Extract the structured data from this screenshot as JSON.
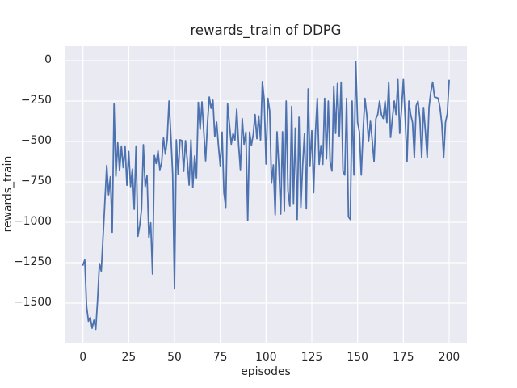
{
  "title": "rewards_train of DDPG",
  "chart_data": {
    "type": "line",
    "title": "rewards_train of DDPG",
    "xlabel": "episodes",
    "ylabel": "rewards_train",
    "x_ticks": [
      0,
      25,
      50,
      75,
      100,
      125,
      150,
      175,
      200
    ],
    "y_ticks": [
      0,
      -250,
      -500,
      -750,
      -1000,
      -1250,
      -1500
    ],
    "xlim": [
      -10,
      209.7
    ],
    "ylim": [
      -1745,
      90
    ],
    "grid": true,
    "legend_position": "none",
    "style": "seaborn-darkgrid",
    "colors": {
      "line": "#4c72b0",
      "axes_background": "#eaeaf2",
      "grid": "#ffffff",
      "figure_background": "#ffffff",
      "text": "#262626"
    },
    "series": [
      {
        "name": "rewards_train",
        "x_start": 0,
        "x_step": 1,
        "values": [
          -1265,
          -1233,
          -1520,
          -1612,
          -1588,
          -1655,
          -1605,
          -1662,
          -1480,
          -1255,
          -1302,
          -1088,
          -868,
          -648,
          -830,
          -718,
          -1062,
          -268,
          -715,
          -508,
          -680,
          -528,
          -662,
          -528,
          -771,
          -562,
          -779,
          -671,
          -920,
          -528,
          -1087,
          -1020,
          -920,
          -520,
          -779,
          -712,
          -1095,
          -1003,
          -1320,
          -587,
          -637,
          -558,
          -675,
          -628,
          -478,
          -578,
          -492,
          -250,
          -460,
          -703,
          -1412,
          -490,
          -705,
          -490,
          -495,
          -685,
          -495,
          -620,
          -770,
          -490,
          -785,
          -590,
          -725,
          -258,
          -425,
          -255,
          -440,
          -620,
          -390,
          -225,
          -295,
          -245,
          -470,
          -380,
          -525,
          -650,
          -442,
          -817,
          -908,
          -267,
          -392,
          -517,
          -450,
          -492,
          -300,
          -517,
          -675,
          -358,
          -517,
          -442,
          -990,
          -442,
          -525,
          -458,
          -333,
          -483,
          -342,
          -492,
          -130,
          -242,
          -640,
          -233,
          -310,
          -758,
          -645,
          -955,
          -440,
          -655,
          -950,
          -440,
          -930,
          -250,
          -808,
          -900,
          -283,
          -883,
          -417,
          -983,
          -350,
          -908,
          -650,
          -450,
          -917,
          -175,
          -650,
          -433,
          -817,
          -442,
          -233,
          -642,
          -525,
          -642,
          -233,
          -608,
          -250,
          -625,
          -683,
          -158,
          -450,
          -142,
          -467,
          -133,
          -683,
          -708,
          -233,
          -967,
          -983,
          -250,
          -708,
          -5,
          -383,
          -442,
          -708,
          -433,
          -233,
          -333,
          -500,
          -375,
          -495,
          -625,
          -358,
          -333,
          -250,
          -333,
          -358,
          -250,
          -383,
          -133,
          -475,
          -358,
          -250,
          -333,
          -117,
          -450,
          -300,
          -117,
          -358,
          -625,
          -250,
          -333,
          -383,
          -600,
          -280,
          -250,
          -358,
          -600,
          -290,
          -435,
          -600,
          -290,
          -192,
          -133,
          -225,
          -228,
          -233,
          -290,
          -392,
          -600,
          -381,
          -328,
          -122
        ]
      }
    ]
  }
}
